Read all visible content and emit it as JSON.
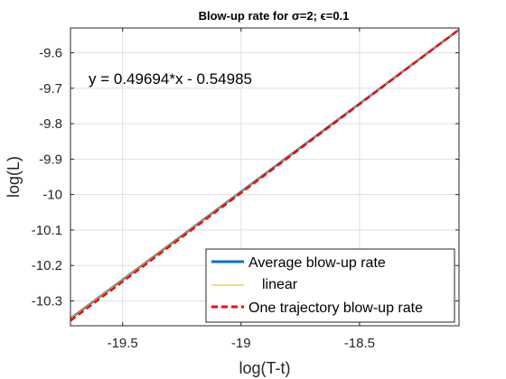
{
  "chart_data": {
    "type": "line",
    "title": "Blow-up rate for σ=2; ϵ=0.1",
    "xlabel": "log(T-t)",
    "ylabel": "log(L)",
    "xlim": [
      -19.72,
      -18.08
    ],
    "ylim": [
      -10.37,
      -9.53
    ],
    "xticks": [
      -19.5,
      -19,
      -18.5
    ],
    "xtick_labels": [
      "-19.5",
      "-19",
      "-18.5"
    ],
    "yticks": [
      -10.3,
      -10.2,
      -10.1,
      -10,
      -9.9,
      -9.8,
      -9.7,
      -9.6
    ],
    "ytick_labels": [
      "-10.3",
      "-10.2",
      "-10.1",
      "-10",
      "-9.9",
      "-9.8",
      "-9.7",
      "-9.6"
    ],
    "grid": true,
    "annotation": "y = 0.49694*x - 0.54985",
    "legend_position": "bottom-right",
    "series": [
      {
        "name": "Average blow-up rate",
        "color": "#0072BD",
        "style": "solid",
        "x": [
          -19.72,
          -18.08
        ],
        "y": [
          -10.3497,
          -9.5347
        ]
      },
      {
        "name": "linear",
        "color": "#EDB120",
        "style": "solid",
        "x": [
          -19.72,
          -18.08
        ],
        "y": [
          -10.3497,
          -9.5347
        ]
      },
      {
        "name": "One trajectory blow-up rate",
        "color": "#FF0000",
        "style": "dashed",
        "x": [
          -19.72,
          -18.08
        ],
        "y": [
          -10.3557,
          -9.5347
        ]
      }
    ]
  }
}
